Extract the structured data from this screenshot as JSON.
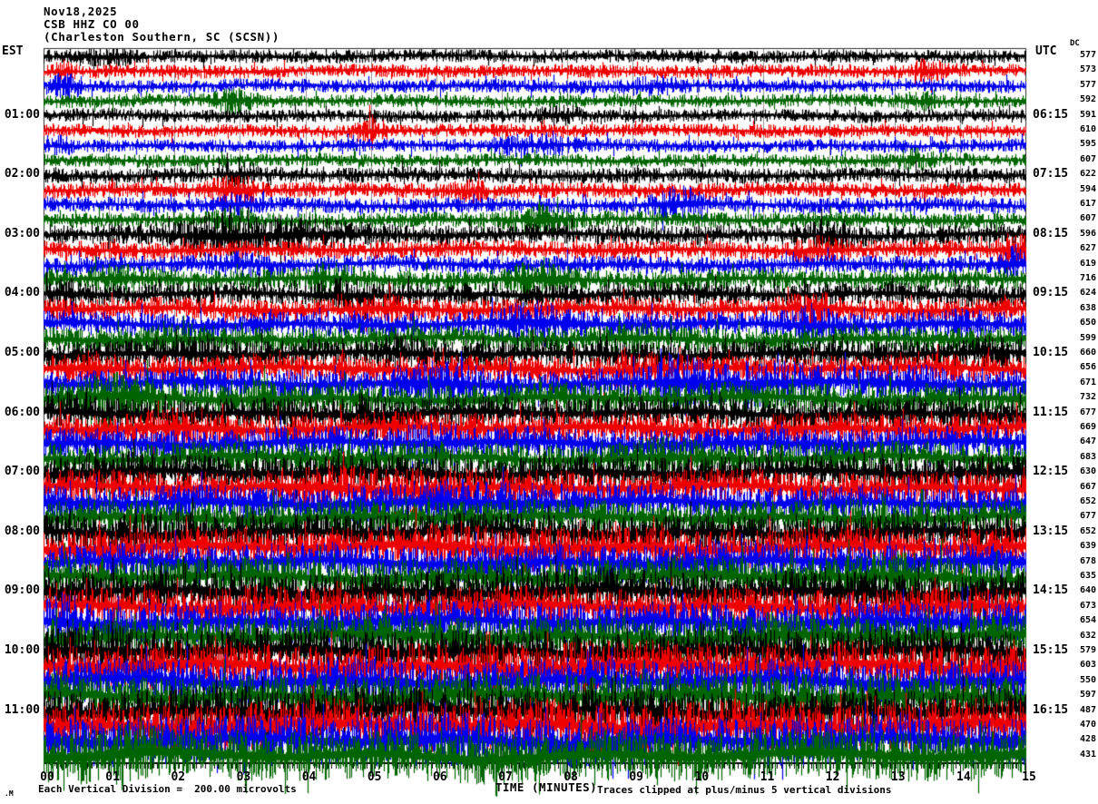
{
  "header": {
    "date": "Nov18,2025",
    "station": "CSB HHZ CO 00",
    "location": "(Charleston Southern, SC (SCSN))",
    "left_tz": "EST",
    "right_tz": "UTC",
    "dc_label": "DC"
  },
  "footer": {
    "axis_title": "TIME (MINUTES)",
    "scale_note": "Each Vertical Division =  200.00 microvolts",
    "clip_note": "Traces clipped at plus/minus 5 vertical divisions",
    "watermark": ".M"
  },
  "x_axis": {
    "tick_labels": [
      "00",
      "01",
      "02",
      "03",
      "04",
      "05",
      "06",
      "07",
      "08",
      "09",
      "10",
      "11",
      "12",
      "13",
      "14",
      "15"
    ],
    "minutes_per_line": 15
  },
  "chart_data": {
    "type": "line",
    "subtype": "helicorder-seismogram",
    "title": "CSB HHZ CO 00 (Charleston Southern, SC (SCSN)) Nov18,2025",
    "xlabel": "TIME (MINUTES)",
    "x_range": [
      0,
      15
    ],
    "grid": "vertical-minute-lines",
    "volts_per_division": "200.00 microvolts",
    "clip_divisions": 5,
    "trace_colors": {
      "black": "#000000",
      "red": "#ee0000",
      "blue": "#0000ee",
      "green": "#006400"
    },
    "rows": [
      {
        "est": "",
        "utc": "",
        "dc": 577,
        "color": "black",
        "amp": 6,
        "bursts": [
          [
            1.0,
            0.2,
            5
          ]
        ]
      },
      {
        "est": "",
        "utc": "",
        "dc": 573,
        "color": "red",
        "amp": 6,
        "bursts": [
          [
            0.3,
            0.1,
            5
          ],
          [
            13.5,
            0.2,
            6
          ]
        ]
      },
      {
        "est": "",
        "utc": "",
        "dc": 577,
        "color": "blue",
        "amp": 6,
        "bursts": [
          [
            0.35,
            0.15,
            8
          ],
          [
            9.3,
            0.3,
            4
          ]
        ]
      },
      {
        "est": "",
        "utc": "",
        "dc": 592,
        "color": "green",
        "amp": 6,
        "bursts": [
          [
            2.9,
            0.2,
            7
          ],
          [
            13.4,
            0.2,
            5
          ]
        ]
      },
      {
        "est": "01:00",
        "utc": "06:15",
        "dc": 591,
        "color": "black",
        "amp": 6,
        "bursts": [
          [
            7.9,
            0.3,
            4
          ]
        ]
      },
      {
        "est": "",
        "utc": "",
        "dc": 610,
        "color": "red",
        "amp": 6,
        "bursts": [
          [
            5.0,
            0.15,
            9
          ]
        ]
      },
      {
        "est": "",
        "utc": "",
        "dc": 595,
        "color": "blue",
        "amp": 6,
        "bursts": [
          [
            7.5,
            0.4,
            6
          ],
          [
            0.3,
            0.1,
            5
          ]
        ]
      },
      {
        "est": "",
        "utc": "",
        "dc": 607,
        "color": "green",
        "amp": 6,
        "bursts": [
          [
            13.3,
            0.2,
            5
          ]
        ]
      },
      {
        "est": "02:00",
        "utc": "07:15",
        "dc": 622,
        "color": "black",
        "amp": 7,
        "bursts": [
          [
            3.0,
            0.2,
            6
          ]
        ]
      },
      {
        "est": "",
        "utc": "",
        "dc": 594,
        "color": "red",
        "amp": 7,
        "bursts": [
          [
            2.9,
            0.25,
            9
          ],
          [
            6.5,
            0.2,
            5
          ]
        ]
      },
      {
        "est": "",
        "utc": "",
        "dc": 617,
        "color": "blue",
        "amp": 7,
        "bursts": [
          [
            9.7,
            0.25,
            12
          ],
          [
            2.9,
            0.2,
            5
          ]
        ]
      },
      {
        "est": "",
        "utc": "",
        "dc": 607,
        "color": "green",
        "amp": 7,
        "bursts": [
          [
            7.6,
            0.3,
            8
          ],
          [
            2.9,
            0.2,
            5
          ]
        ]
      },
      {
        "est": "03:00",
        "utc": "08:15",
        "dc": 596,
        "color": "black",
        "amp": 9,
        "bursts": [
          [
            3.4,
            0.8,
            10
          ],
          [
            2.6,
            0.3,
            8
          ],
          [
            11.9,
            0.3,
            5
          ]
        ]
      },
      {
        "est": "",
        "utc": "",
        "dc": 627,
        "color": "red",
        "amp": 8,
        "bursts": [
          [
            14.8,
            0.15,
            12
          ],
          [
            11.8,
            0.3,
            6
          ]
        ]
      },
      {
        "est": "",
        "utc": "",
        "dc": 619,
        "color": "blue",
        "amp": 8,
        "bursts": [
          [
            14.85,
            0.12,
            10
          ],
          [
            3.0,
            0.3,
            5
          ]
        ]
      },
      {
        "est": "",
        "utc": "",
        "dc": 716,
        "color": "green",
        "amp": 9,
        "bursts": [
          [
            7.6,
            0.3,
            11
          ],
          [
            4.4,
            0.25,
            8
          ],
          [
            1.2,
            0.3,
            6
          ]
        ]
      },
      {
        "est": "04:00",
        "utc": "09:15",
        "dc": 624,
        "color": "black",
        "amp": 10,
        "bursts": [
          [
            4.6,
            0.3,
            8
          ],
          [
            0.3,
            0.15,
            6
          ]
        ]
      },
      {
        "est": "",
        "utc": "",
        "dc": 638,
        "color": "red",
        "amp": 10,
        "bursts": [
          [
            11.7,
            0.25,
            8
          ],
          [
            5.2,
            0.2,
            5
          ]
        ]
      },
      {
        "est": "",
        "utc": "",
        "dc": 650,
        "color": "blue",
        "amp": 11,
        "bursts": [
          [
            7.5,
            0.35,
            10
          ],
          [
            11.7,
            0.3,
            7
          ],
          [
            14.0,
            0.2,
            5
          ]
        ]
      },
      {
        "est": "",
        "utc": "",
        "dc": 599,
        "color": "green",
        "amp": 11,
        "bursts": [
          [
            2.0,
            0.3,
            5
          ],
          [
            9.0,
            0.3,
            4
          ]
        ]
      },
      {
        "est": "05:00",
        "utc": "10:15",
        "dc": 660,
        "color": "black",
        "amp": 12,
        "bursts": [
          [
            2.5,
            0.3,
            6
          ],
          [
            5.5,
            0.25,
            6
          ],
          [
            14.5,
            0.2,
            5
          ]
        ]
      },
      {
        "est": "",
        "utc": "",
        "dc": 656,
        "color": "red",
        "amp": 12,
        "bursts": [
          [
            0.8,
            0.2,
            8
          ],
          [
            9.0,
            0.3,
            4
          ]
        ]
      },
      {
        "est": "",
        "utc": "",
        "dc": 671,
        "color": "blue",
        "amp": 13,
        "bursts": [
          [
            9.7,
            0.22,
            14
          ],
          [
            10.8,
            0.8,
            9
          ],
          [
            6.1,
            0.5,
            8
          ],
          [
            13.2,
            0.4,
            6
          ]
        ]
      },
      {
        "est": "",
        "utc": "",
        "dc": 732,
        "color": "green",
        "amp": 14,
        "bursts": [
          [
            1.2,
            0.4,
            9
          ],
          [
            3.2,
            0.3,
            6
          ]
        ]
      },
      {
        "est": "06:00",
        "utc": "11:15",
        "dc": 677,
        "color": "black",
        "amp": 14,
        "bursts": [
          [
            5.0,
            0.25,
            8
          ],
          [
            0.5,
            0.2,
            5
          ]
        ]
      },
      {
        "est": "",
        "utc": "",
        "dc": 669,
        "color": "red",
        "amp": 14,
        "bursts": [
          [
            2.0,
            0.3,
            5
          ]
        ]
      },
      {
        "est": "",
        "utc": "",
        "dc": 647,
        "color": "blue",
        "amp": 14,
        "bursts": [
          [
            6.0,
            0.4,
            5
          ]
        ]
      },
      {
        "est": "",
        "utc": "",
        "dc": 683,
        "color": "green",
        "amp": 14,
        "bursts": [
          [
            9.5,
            0.4,
            5
          ]
        ]
      },
      {
        "est": "07:00",
        "utc": "12:15",
        "dc": 630,
        "color": "black",
        "amp": 15,
        "bursts": [
          [
            1.0,
            0.3,
            5
          ]
        ]
      },
      {
        "est": "",
        "utc": "",
        "dc": 667,
        "color": "red",
        "amp": 15,
        "bursts": [
          [
            5.0,
            1.2,
            6
          ]
        ]
      },
      {
        "est": "",
        "utc": "",
        "dc": 652,
        "color": "blue",
        "amp": 15,
        "bursts": [
          [
            6.5,
            1.0,
            6
          ]
        ]
      },
      {
        "est": "",
        "utc": "",
        "dc": 677,
        "color": "green",
        "amp": 15,
        "bursts": [
          [
            12.5,
            0.5,
            5
          ]
        ]
      },
      {
        "est": "08:00",
        "utc": "13:15",
        "dc": 652,
        "color": "black",
        "amp": 16,
        "bursts": [
          [
            2.0,
            0.5,
            5
          ]
        ]
      },
      {
        "est": "",
        "utc": "",
        "dc": 639,
        "color": "red",
        "amp": 17,
        "bursts": [
          [
            7.0,
            1.5,
            4
          ]
        ]
      },
      {
        "est": "",
        "utc": "",
        "dc": 678,
        "color": "blue",
        "amp": 16,
        "bursts": [
          [
            10.0,
            0.5,
            5
          ]
        ]
      },
      {
        "est": "",
        "utc": "",
        "dc": 635,
        "color": "green",
        "amp": 17,
        "bursts": [
          [
            13.0,
            0.6,
            5
          ]
        ]
      },
      {
        "est": "09:00",
        "utc": "14:15",
        "dc": 640,
        "color": "black",
        "amp": 18,
        "bursts": [
          [
            7.5,
            1.0,
            4
          ]
        ]
      },
      {
        "est": "",
        "utc": "",
        "dc": 673,
        "color": "red",
        "amp": 17,
        "bursts": [
          [
            3.0,
            0.5,
            4
          ]
        ]
      },
      {
        "est": "",
        "utc": "",
        "dc": 654,
        "color": "blue",
        "amp": 18,
        "bursts": [
          [
            0.3,
            0.2,
            10
          ]
        ]
      },
      {
        "est": "",
        "utc": "",
        "dc": 632,
        "color": "green",
        "amp": 18,
        "bursts": [
          [
            11.0,
            0.8,
            4
          ]
        ]
      },
      {
        "est": "10:00",
        "utc": "15:15",
        "dc": 579,
        "color": "black",
        "amp": 19,
        "bursts": [
          [
            1.0,
            0.5,
            4
          ]
        ]
      },
      {
        "est": "",
        "utc": "",
        "dc": 603,
        "color": "red",
        "amp": 20,
        "bursts": [
          [
            8.0,
            1.0,
            4
          ]
        ]
      },
      {
        "est": "",
        "utc": "",
        "dc": 550,
        "color": "blue",
        "amp": 19,
        "bursts": [
          [
            5.0,
            0.5,
            4
          ]
        ]
      },
      {
        "est": "",
        "utc": "",
        "dc": 597,
        "color": "green",
        "amp": 20,
        "bursts": [
          [
            12.0,
            0.5,
            4
          ]
        ]
      },
      {
        "est": "11:00",
        "utc": "16:15",
        "dc": 487,
        "color": "black",
        "amp": 20,
        "bursts": [
          [
            3.0,
            0.5,
            4
          ]
        ]
      },
      {
        "est": "",
        "utc": "",
        "dc": 470,
        "color": "red",
        "amp": 22,
        "bursts": [
          [
            9.0,
            1.0,
            4
          ]
        ]
      },
      {
        "est": "",
        "utc": "",
        "dc": 428,
        "color": "blue",
        "amp": 21,
        "bursts": [
          [
            6.0,
            0.5,
            4
          ]
        ]
      },
      {
        "est": "",
        "utc": "",
        "dc": 431,
        "color": "green",
        "amp": 22,
        "bursts": [
          [
            1.2,
            0.4,
            6
          ]
        ]
      }
    ]
  }
}
